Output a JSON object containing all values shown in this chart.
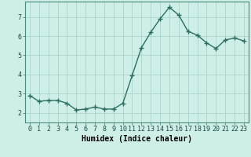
{
  "x": [
    0,
    1,
    2,
    3,
    4,
    5,
    6,
    7,
    8,
    9,
    10,
    11,
    12,
    13,
    14,
    15,
    16,
    17,
    18,
    19,
    20,
    21,
    22,
    23
  ],
  "y": [
    2.9,
    2.6,
    2.65,
    2.65,
    2.5,
    2.15,
    2.2,
    2.3,
    2.2,
    2.2,
    2.5,
    3.95,
    5.4,
    6.2,
    6.9,
    7.5,
    7.1,
    6.25,
    6.05,
    5.65,
    5.35,
    5.8,
    5.9,
    5.75
  ],
  "xlabel": "Humidex (Indice chaleur)",
  "ylim": [
    1.5,
    7.8
  ],
  "xlim": [
    -0.5,
    23.5
  ],
  "bg_color": "#ceeee8",
  "grid_color": "#aad4cc",
  "line_color": "#2d6e62",
  "marker": "+",
  "marker_size": 4,
  "line_width": 1.0,
  "tick_fontsize": 6,
  "label_fontsize": 7,
  "yticks": [
    2,
    3,
    4,
    5,
    6,
    7
  ],
  "xticks": [
    0,
    1,
    2,
    3,
    4,
    5,
    6,
    7,
    8,
    9,
    10,
    11,
    12,
    13,
    14,
    15,
    16,
    17,
    18,
    19,
    20,
    21,
    22,
    23
  ],
  "spine_color": "#4a8a7a"
}
